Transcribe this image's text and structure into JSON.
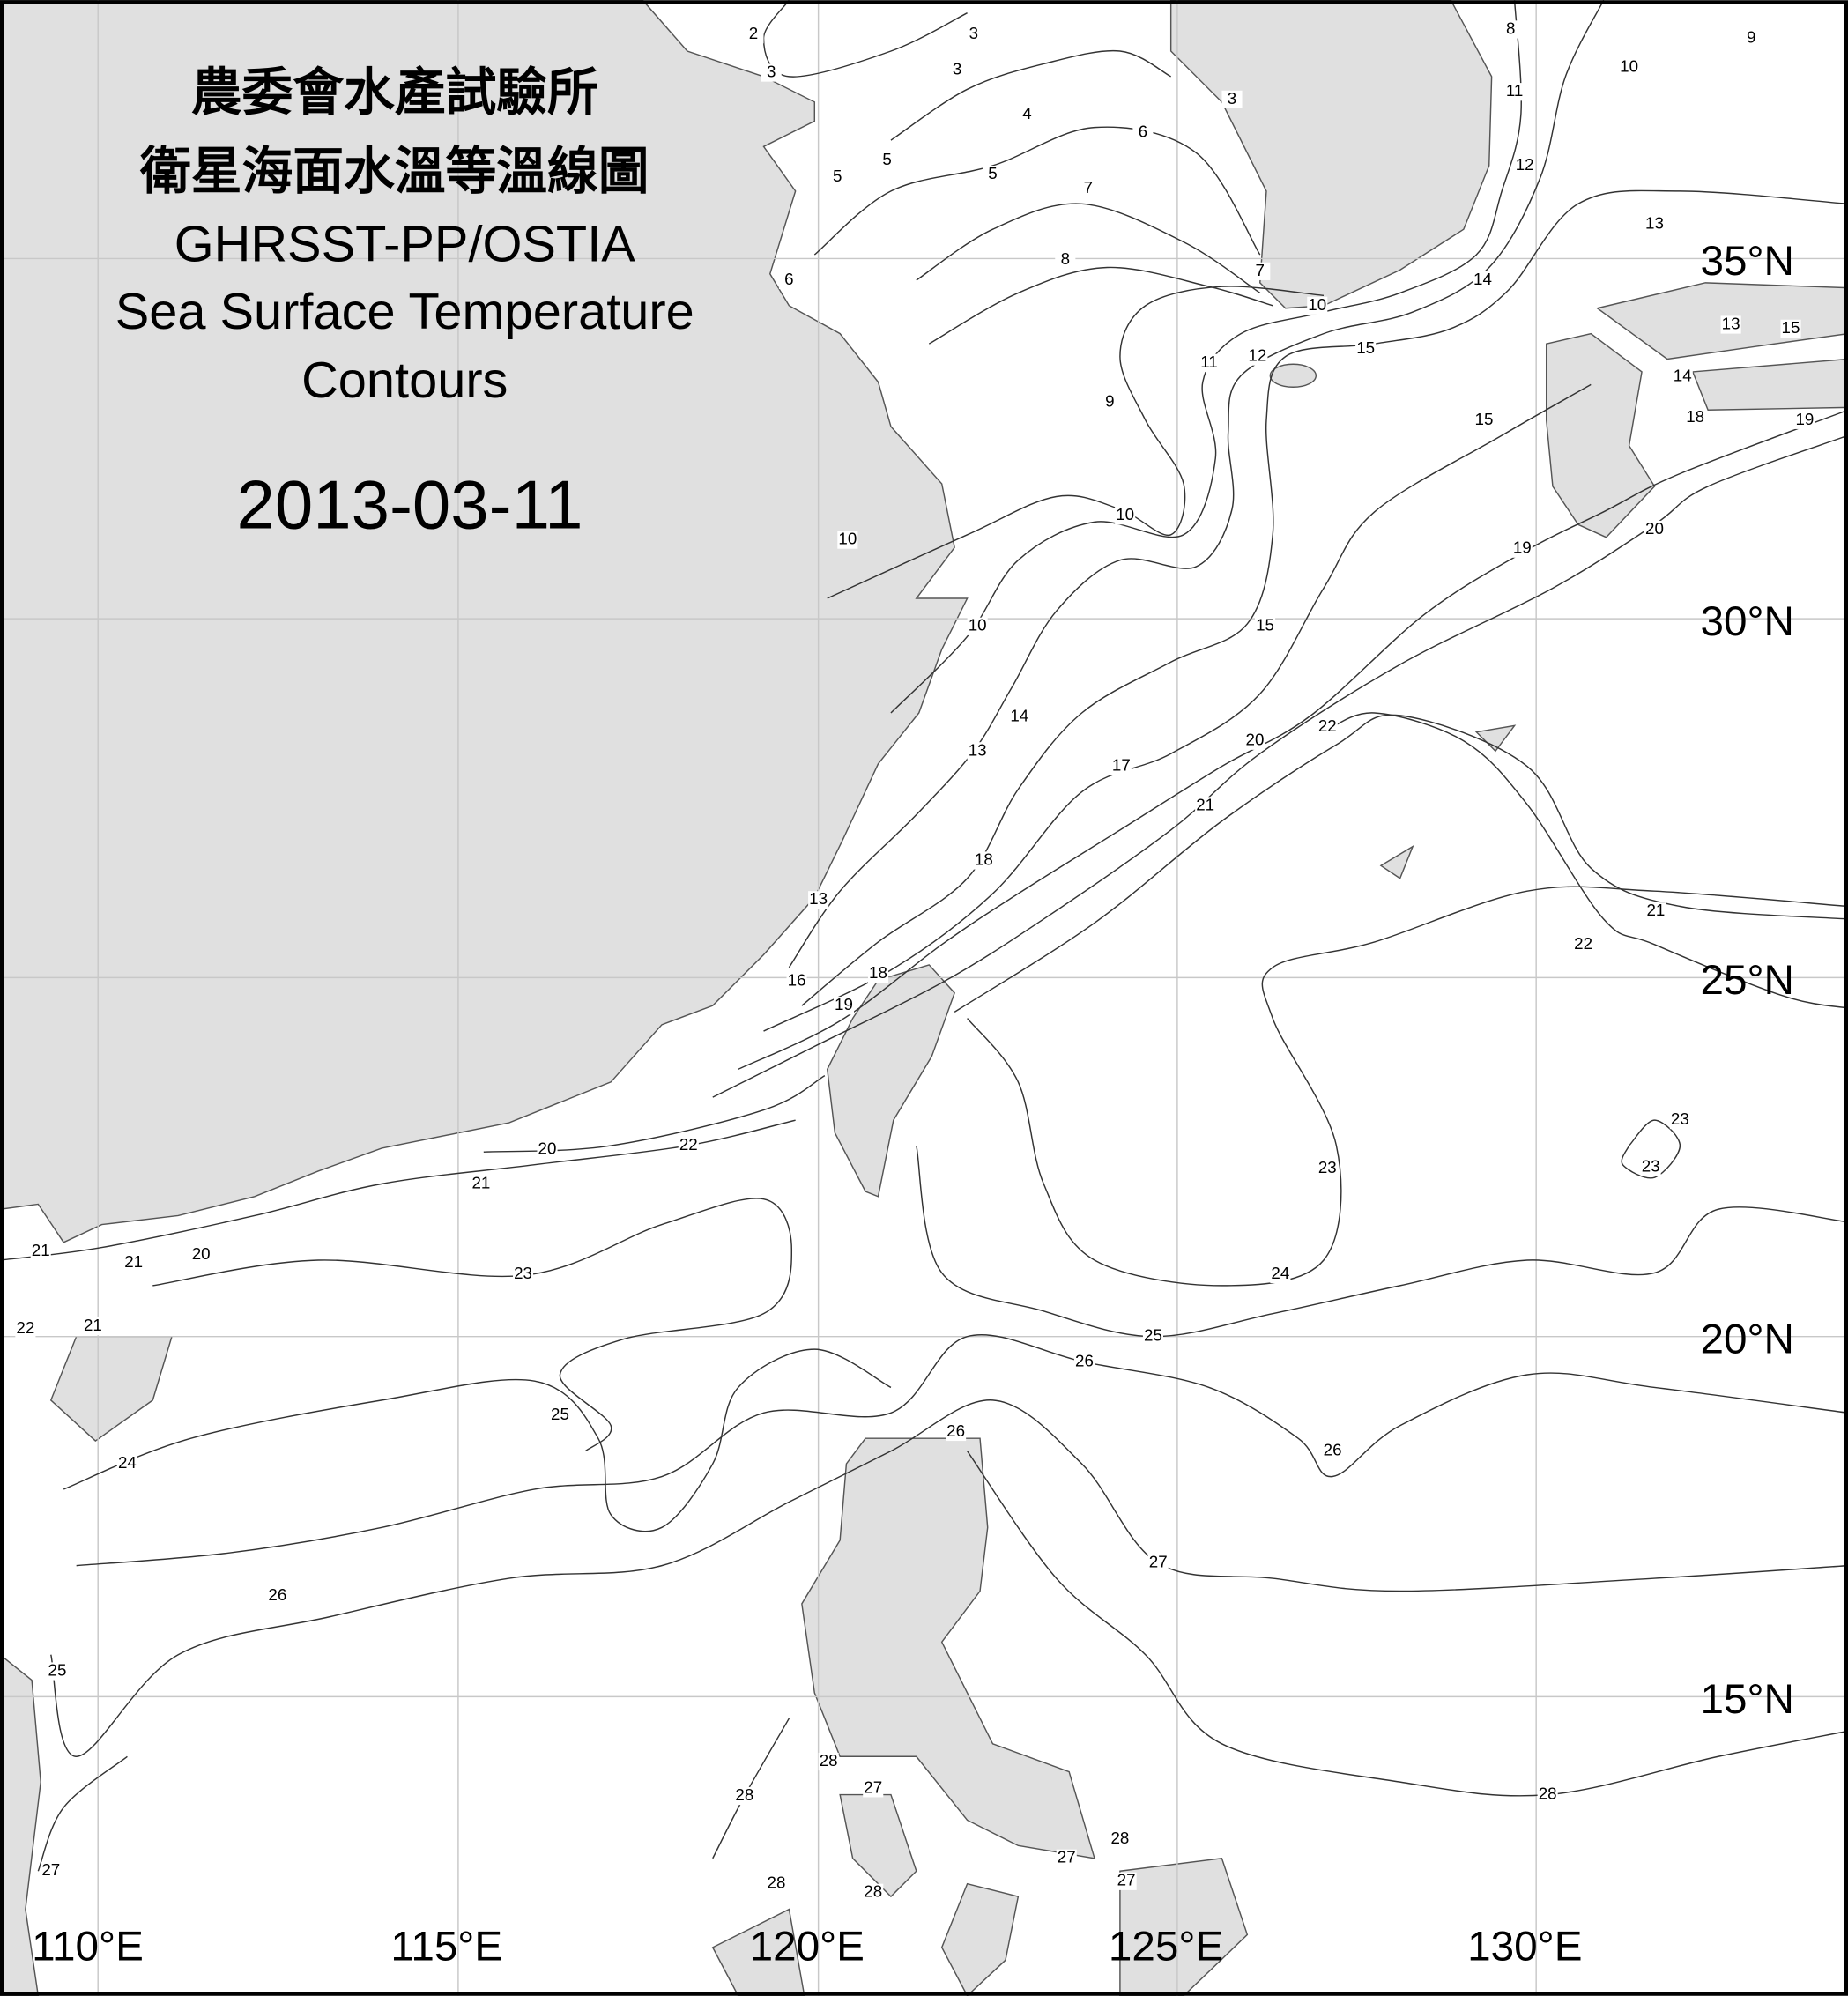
{
  "title": {
    "line1_zh": "農委會水產試驗所",
    "line2_zh": "衛星海面水溫等溫線圖",
    "line3": "GHRSST-PP/OSTIA",
    "line4": "Sea Surface Temperature",
    "line5": "Contours",
    "date": "2013-03-11"
  },
  "axes": {
    "longitude_labels": [
      "110°E",
      "115°E",
      "120°E",
      "125°E",
      "130°E"
    ],
    "latitude_labels": [
      "35°N",
      "30°N",
      "25°N",
      "20°N",
      "15°N"
    ]
  },
  "colors": {
    "land": "#e0e0e0",
    "sea": "#ffffff",
    "contour": "#333333",
    "grid": "#c8c8c8"
  },
  "contour_labels": [
    "2",
    "3",
    "3",
    "3",
    "3",
    "4",
    "5",
    "5",
    "5",
    "6",
    "6",
    "7",
    "7",
    "8",
    "8",
    "9",
    "9",
    "10",
    "10",
    "10",
    "10",
    "10",
    "11",
    "11",
    "12",
    "12",
    "13",
    "13",
    "13",
    "13",
    "14",
    "14",
    "14",
    "15",
    "15",
    "15",
    "15",
    "16",
    "17",
    "18",
    "18",
    "18",
    "19",
    "19",
    "19",
    "20",
    "20",
    "20",
    "20",
    "21",
    "21",
    "21",
    "21",
    "21",
    "21",
    "22",
    "22",
    "22",
    "22",
    "23",
    "23",
    "23",
    "23",
    "24",
    "24",
    "25",
    "25",
    "25",
    "26",
    "26",
    "26",
    "26",
    "27",
    "27",
    "27",
    "27",
    "27",
    "28",
    "28",
    "28",
    "28",
    "28",
    "28"
  ]
}
